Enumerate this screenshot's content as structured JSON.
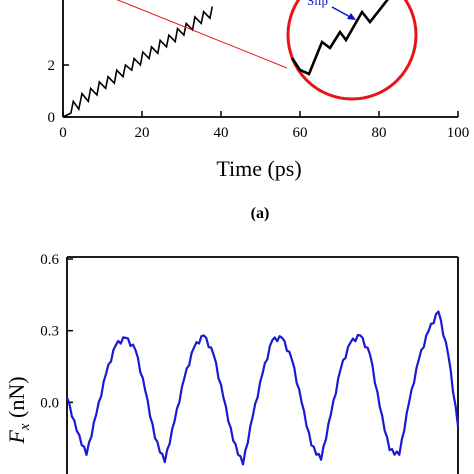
{
  "chart_data": [
    {
      "type": "line",
      "panel_label": "(a)",
      "xlabel": "Time (ps)",
      "xlim": [
        0,
        100
      ],
      "xticks": [
        0,
        20,
        40,
        60,
        80,
        100
      ],
      "ylabel": "",
      "ylim": [
        0,
        4.5
      ],
      "yticks": [
        0,
        2
      ],
      "series": [
        {
          "color": "#000000",
          "x": [
            0,
            2,
            2.6,
            4,
            4.8,
            6.4,
            7.0,
            8.6,
            9.2,
            10.8,
            11.4,
            13.0,
            13.6,
            15.2,
            15.8,
            17.4,
            18.0,
            19.6,
            20.2,
            21.8,
            22.4,
            24.0,
            24.6,
            26.2,
            26.8,
            28.4,
            29.0,
            30.6,
            31.2,
            32.8,
            33.4,
            35.0,
            35.6,
            37.2,
            37.8
          ],
          "y": [
            0,
            0.15,
            0.6,
            0.3,
            0.9,
            0.6,
            1.1,
            0.85,
            1.35,
            1.1,
            1.55,
            1.3,
            1.8,
            1.55,
            2.0,
            1.8,
            2.25,
            2.0,
            2.5,
            2.25,
            2.7,
            2.45,
            2.95,
            2.7,
            3.15,
            2.9,
            3.4,
            3.15,
            3.6,
            3.35,
            3.85,
            3.6,
            4.05,
            3.8,
            4.25
          ]
        }
      ],
      "inset": {
        "shape": "circle",
        "annotation": "Slip",
        "trace_color": "#000000",
        "circle_color": "#e8141c",
        "arrow_color": "#0a12c8"
      }
    },
    {
      "type": "line",
      "xlabel": "",
      "ylabel": "F_x (nN)",
      "ylim": [
        -0.3,
        0.6
      ],
      "yticks": [
        0.6,
        0.3,
        0.0
      ],
      "ytick_labels": [
        "0.6",
        "0.3",
        "0.0"
      ],
      "series": [
        {
          "color": "#1a1ad6",
          "x": [
            0,
            3,
            6,
            9,
            12,
            15,
            18,
            21,
            24,
            27,
            30,
            33,
            36,
            39,
            42,
            45,
            48,
            51,
            54,
            57,
            60,
            63,
            66,
            69,
            72,
            75,
            78,
            81,
            84,
            87,
            90,
            93,
            96,
            99,
            102,
            105,
            108,
            111,
            114,
            117,
            120
          ],
          "y": [
            0.02,
            -0.12,
            -0.22,
            -0.05,
            0.12,
            0.24,
            0.27,
            0.22,
            0.05,
            -0.15,
            -0.25,
            -0.08,
            0.1,
            0.23,
            0.28,
            0.2,
            0.02,
            -0.16,
            -0.26,
            -0.06,
            0.12,
            0.26,
            0.27,
            0.18,
            0.0,
            -0.18,
            -0.24,
            -0.05,
            0.14,
            0.25,
            0.28,
            0.2,
            -0.02,
            -0.2,
            -0.22,
            0.0,
            0.18,
            0.3,
            0.38,
            0.2,
            -0.1
          ]
        }
      ]
    }
  ]
}
